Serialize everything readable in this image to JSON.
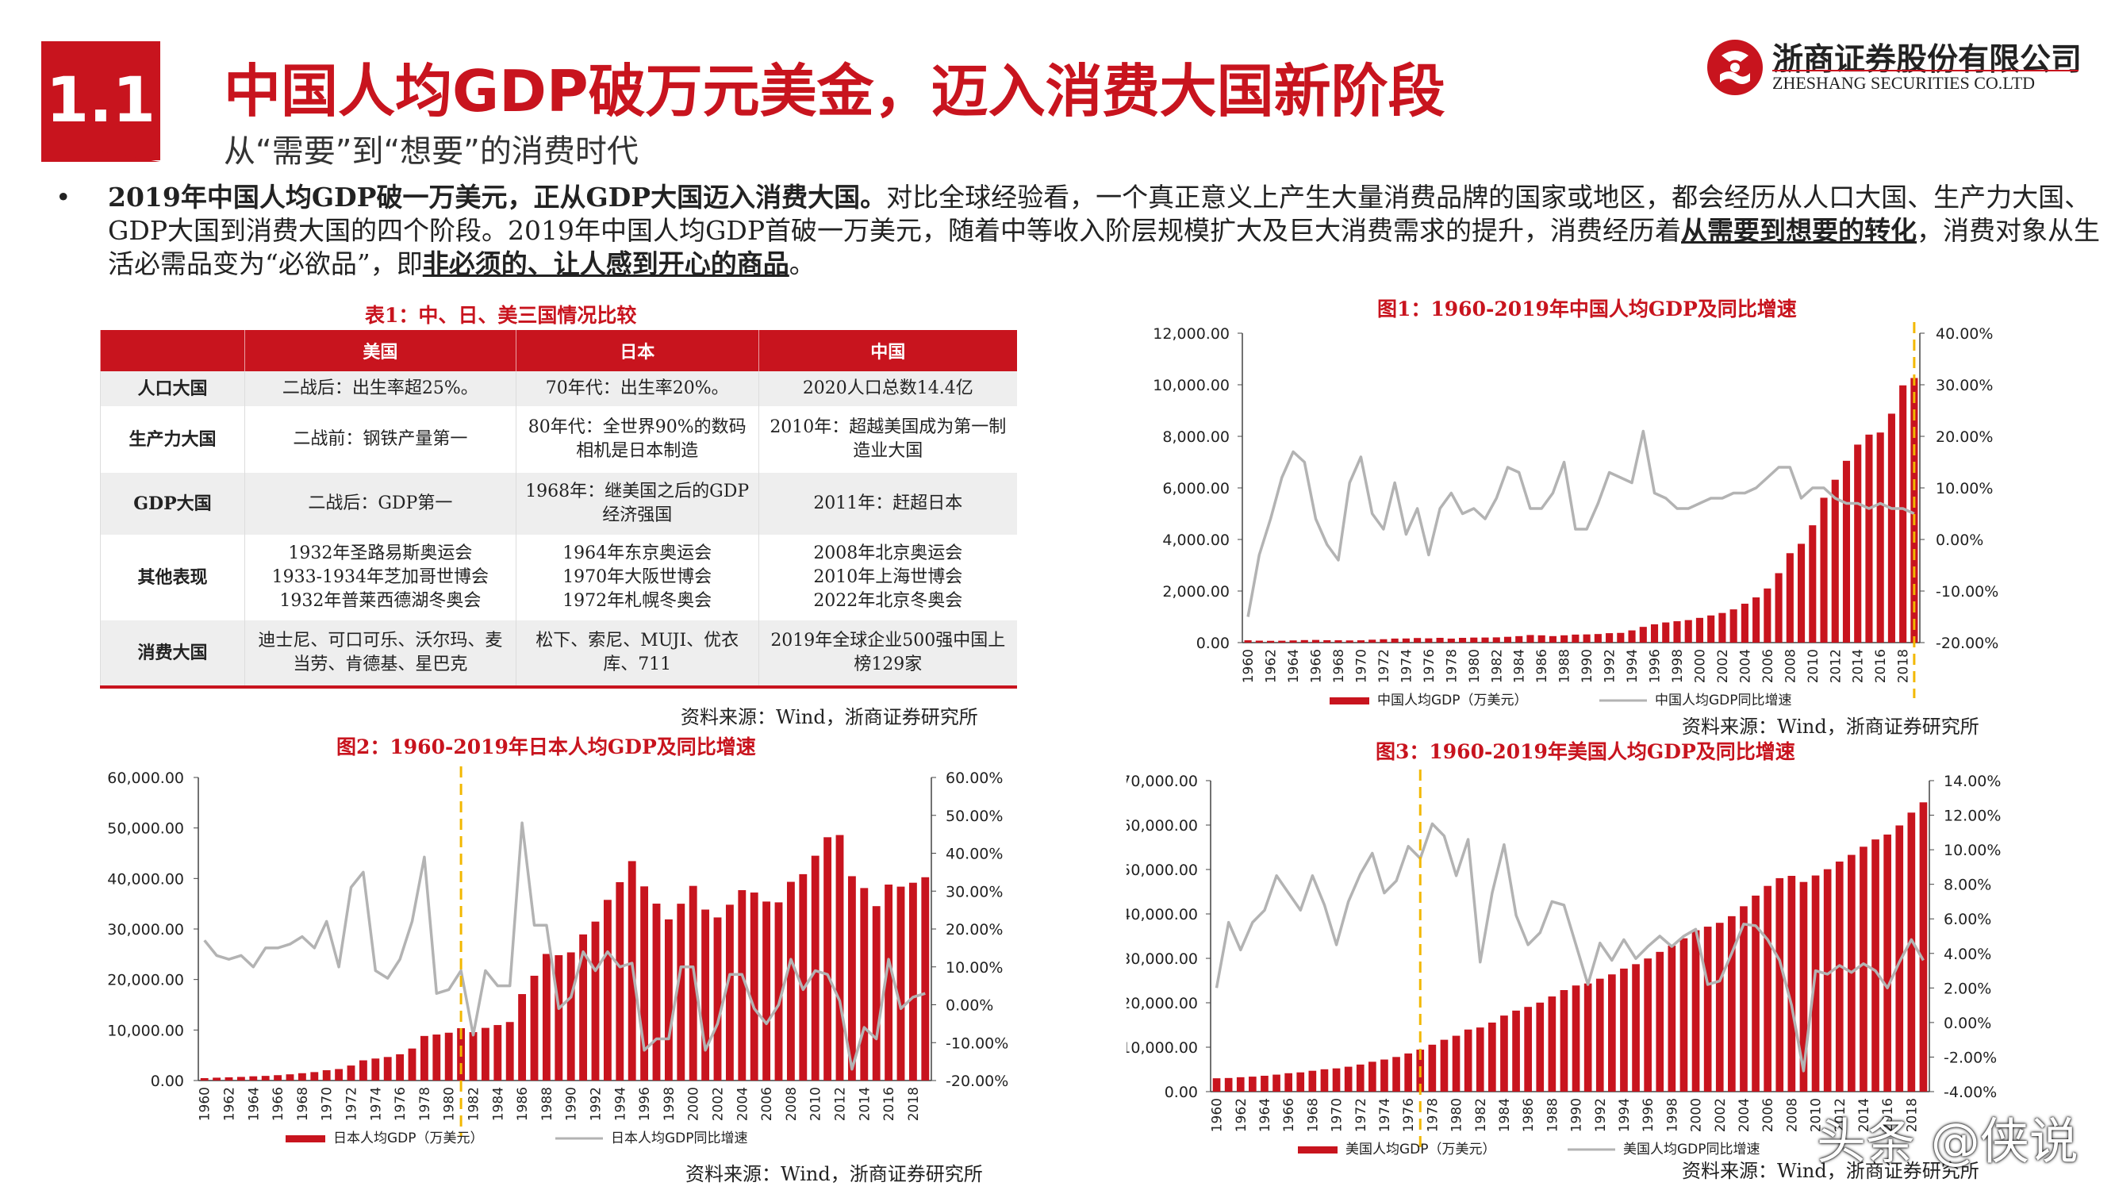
{
  "header": {
    "section_number": "1.1",
    "title": "中国人均GDP破万元美金，迈入消费大国新阶段",
    "subtitle": "从“需要”到“想要”的消费时代",
    "logo_cn": "浙商证券股份有限公司",
    "logo_en": "ZHESHANG SECURITIES CO.LTD"
  },
  "intro": {
    "bullet": "•",
    "bold1": "2019年中国人均GDP破一万美元，正从GDP大国迈入消费大国。",
    "text1": "对比全球经验看，一个真正意义上产生大量消费品牌的国家或地区，都会经历从人口大国、生产力大国、GDP大国到消费大国的四个阶段。2019年中国人均GDP首破一万美元，随着中等收入阶层规模扩大及巨大消费需求的提升，消费经历着",
    "underline1": "从需要到想要的转化",
    "text2": "，消费对象从生活必需品变为“必欲品”，即",
    "underline2": "非必须的、让人感到开心的商品",
    "text3": "。"
  },
  "table": {
    "caption": "表1：中、日、美三国情况比较",
    "headers": [
      "",
      "美国",
      "日本",
      "中国"
    ],
    "rows": [
      [
        "人口大国",
        "二战后：出生率超25%。",
        "70年代：出生率20%。",
        "2020人口总数14.4亿"
      ],
      [
        "生产力大国",
        "二战前：钢铁产量第一",
        "80年代：全世界90%的数码相机是日本制造",
        "2010年：超越美国成为第一制造业大国"
      ],
      [
        "GDP大国",
        "二战后：GDP第一",
        "1968年：继美国之后的GDP经济强国",
        "2011年：赶超日本"
      ],
      [
        "其他表现",
        "1932年圣路易斯奥运会\n1933-1934年芝加哥世博会\n1932年普莱西德湖冬奥会",
        "1964年东京奥运会\n1970年大阪世博会\n1972年札幌冬奥会",
        "2008年北京奥运会\n2010年上海世博会\n2022年北京冬奥会"
      ],
      [
        "消费大国",
        "迪士尼、可口可乐、沃尔玛、麦当劳、肯德基、星巴克",
        "松下、索尼、MUJI、优衣库、711",
        "2019年全球企业500强中国上榜129家"
      ]
    ],
    "source": "资料来源：Wind，浙商证券研究所"
  },
  "colors": {
    "accent": "#c8141e",
    "line": "#b3b3b3",
    "marker": "#f2b800"
  },
  "watermark": "头条 @侠说",
  "chart_data": [
    {
      "id": "china",
      "type": "bar+line",
      "title": "图1：1960-2019年中国人均GDP及同比增速",
      "source": "资料来源：Wind，浙商证券研究所",
      "x_start": 1960,
      "x_tick_labels": [
        "1960",
        "1962",
        "1964",
        "1966",
        "1968",
        "1970",
        "1972",
        "1974",
        "1976",
        "1978",
        "1980",
        "1982",
        "1984",
        "1986",
        "1988",
        "1990",
        "1992",
        "1994",
        "1996",
        "1998",
        "2000",
        "2002",
        "2004",
        "2006",
        "2008",
        "2010",
        "2012",
        "2014",
        "2016",
        "2018"
      ],
      "marker_year": 2019,
      "left_axis": {
        "min": 0,
        "max": 12000,
        "ticks": [
          "0.00",
          "2,000.00",
          "4,000.00",
          "6,000.00",
          "8,000.00",
          "10,000.00",
          "12,000.00"
        ]
      },
      "right_axis": {
        "min": -20,
        "max": 40,
        "ticks": [
          "-20.00%",
          "-10.00%",
          "0.00%",
          "10.00%",
          "20.00%",
          "30.00%",
          "40.00%"
        ]
      },
      "series": [
        {
          "name": "中国人均GDP（万美元）",
          "type": "bar",
          "values": [
            90,
            76,
            70,
            74,
            85,
            98,
            104,
            94,
            91,
            85,
            90,
            113,
            132,
            157,
            160,
            178,
            165,
            185,
            156,
            184,
            195,
            197,
            203,
            225,
            251,
            294,
            282,
            252,
            283,
            311,
            318,
            333,
            366,
            377,
            474,
            610,
            709,
            782,
            829,
            873,
            959,
            1053,
            1149,
            1289,
            1509,
            1753,
            2099,
            2693,
            3468,
            3832,
            4550,
            5618,
            6317,
            7051,
            7679,
            8067,
            8148,
            8879,
            9977,
            10262
          ]
        },
        {
          "name": "中国人均GDP同比增速",
          "type": "line",
          "values": [
            -15,
            -3,
            4,
            12,
            17,
            15,
            4,
            -1,
            -4,
            11,
            16,
            5,
            2,
            11,
            1,
            6,
            -3,
            6,
            9,
            5,
            6,
            4,
            8,
            14,
            13,
            6,
            6,
            9,
            15,
            2,
            2,
            7,
            13,
            12,
            11,
            21,
            9,
            8,
            6,
            6,
            7,
            8,
            8,
            9,
            9,
            10,
            12,
            14,
            14,
            8,
            10,
            10,
            8,
            7,
            7,
            6,
            7,
            6,
            6,
            5
          ]
        }
      ]
    },
    {
      "id": "japan",
      "type": "bar+line",
      "title": "图2：1960-2019年日本人均GDP及同比增速",
      "source": "资料来源：Wind，浙商证券研究所",
      "x_start": 1960,
      "x_tick_labels": [
        "1960",
        "1962",
        "1964",
        "1966",
        "1968",
        "1970",
        "1972",
        "1974",
        "1976",
        "1978",
        "1980",
        "1982",
        "1984",
        "1986",
        "1988",
        "1990",
        "1992",
        "1994",
        "1996",
        "1998",
        "2000",
        "2002",
        "2004",
        "2006",
        "2008",
        "2010",
        "2012",
        "2014",
        "2016",
        "2018"
      ],
      "marker_year": 1981,
      "left_axis": {
        "min": 0,
        "max": 60000,
        "ticks": [
          "0.00",
          "10,000.00",
          "20,000.00",
          "30,000.00",
          "40,000.00",
          "50,000.00",
          "60,000.00"
        ]
      },
      "right_axis": {
        "min": -20,
        "max": 60,
        "ticks": [
          "-20.00%",
          "-10.00%",
          "0.00%",
          "10.00%",
          "20.00%",
          "30.00%",
          "40.00%",
          "50.00%",
          "60.00%"
        ]
      },
      "series": [
        {
          "name": "日本人均GDP（万美元）",
          "type": "bar",
          "values": [
            479,
            564,
            633,
            717,
            836,
            920,
            1059,
            1228,
            1451,
            1669,
            2037,
            2272,
            2967,
            3997,
            4354,
            4659,
            5197,
            6335,
            8821,
            9105,
            9465,
            10361,
            9578,
            10425,
            10984,
            11585,
            17112,
            20745,
            25059,
            24813,
            25371,
            28925,
            31465,
            35766,
            39269,
            43440,
            38437,
            35022,
            31903,
            35004,
            38532,
            33846,
            32289,
            34808,
            37689,
            37218,
            35434,
            35275,
            39339,
            40855,
            44508,
            48168,
            48603,
            40454,
            38109,
            34524,
            38794,
            38387,
            39159,
            40247
          ]
        },
        {
          "name": "日本人均GDP同比增速",
          "type": "line",
          "values": [
            17,
            13,
            12,
            13,
            10,
            15,
            15,
            16,
            18,
            15,
            22,
            10,
            31,
            35,
            9,
            7,
            12,
            22,
            39,
            3,
            4,
            9,
            -8,
            9,
            5,
            5,
            48,
            21,
            21,
            -1,
            2,
            14,
            9,
            14,
            10,
            11,
            -12,
            -9,
            -9,
            10,
            10,
            -12,
            -5,
            8,
            8,
            -1,
            -5,
            0,
            12,
            4,
            9,
            8,
            1,
            -17,
            -6,
            -9,
            12,
            -1,
            2,
            3
          ]
        }
      ]
    },
    {
      "id": "usa",
      "type": "bar+line",
      "title": "图3：1960-2019年美国人均GDP及同比增速",
      "source": "资料来源：Wind，浙商证券研究所",
      "x_start": 1960,
      "x_tick_labels": [
        "1960",
        "1962",
        "1964",
        "1966",
        "1968",
        "1970",
        "1972",
        "1974",
        "1976",
        "1978",
        "1980",
        "1982",
        "1984",
        "1986",
        "1988",
        "1990",
        "1992",
        "1994",
        "1996",
        "1998",
        "2000",
        "2002",
        "2004",
        "2006",
        "2008",
        "2010",
        "2012",
        "2014",
        "2016",
        "2018"
      ],
      "marker_year": 1977,
      "left_axis": {
        "min": 0,
        "max": 70000,
        "ticks": [
          "0.00",
          "10,000.00",
          "20,000.00",
          "30,000.00",
          "40,000.00",
          "50,000.00",
          "60,000.00",
          "70,000.00"
        ]
      },
      "right_axis": {
        "min": -4,
        "max": 14,
        "ticks": [
          "-4.00%",
          "-2.00%",
          "0.00%",
          "2.00%",
          "4.00%",
          "6.00%",
          "8.00%",
          "10.00%",
          "12.00%",
          "14.00%"
        ]
      },
      "series": [
        {
          "name": "美国人均GDP（万美元）",
          "type": "bar",
          "values": [
            3007,
            3067,
            3244,
            3375,
            3574,
            3828,
            4146,
            4336,
            4696,
            5032,
            5234,
            5609,
            6094,
            6726,
            7226,
            7801,
            8592,
            9453,
            10565,
            11674,
            12575,
            13976,
            14434,
            15544,
            17121,
            18237,
            19071,
            20039,
            21418,
            22857,
            23889,
            24342,
            25419,
            26387,
            27695,
            28691,
            29968,
            31459,
            32854,
            34516,
            36330,
            37134,
            37998,
            39490,
            41725,
            44123,
            46302,
            48050,
            48570,
            47195,
            48651,
            50066,
            51784,
            53291,
            55124,
            56763,
            57867,
            59915,
            62805,
            65118
          ]
        },
        {
          "name": "美国人均GDP同比增速",
          "type": "line",
          "values": [
            2,
            5.8,
            4.2,
            5.8,
            6.5,
            8.5,
            7.5,
            6.5,
            8.5,
            6.8,
            4.5,
            7,
            8.6,
            9.8,
            7.5,
            8.2,
            10.2,
            9.5,
            11.5,
            10.8,
            8.5,
            10.6,
            3.5,
            7.5,
            10.3,
            6.2,
            4.5,
            5.2,
            7,
            6.8,
            4.5,
            2.2,
            4.6,
            3.6,
            4.8,
            3.7,
            4.4,
            5,
            4.4,
            5,
            5.4,
            2.2,
            2.4,
            4,
            5.7,
            5.6,
            4.8,
            3.6,
            1,
            -2.8,
            3,
            2.8,
            3.3,
            2.9,
            3.4,
            3,
            2,
            3.5,
            4.8,
            3.6
          ]
        }
      ]
    }
  ]
}
